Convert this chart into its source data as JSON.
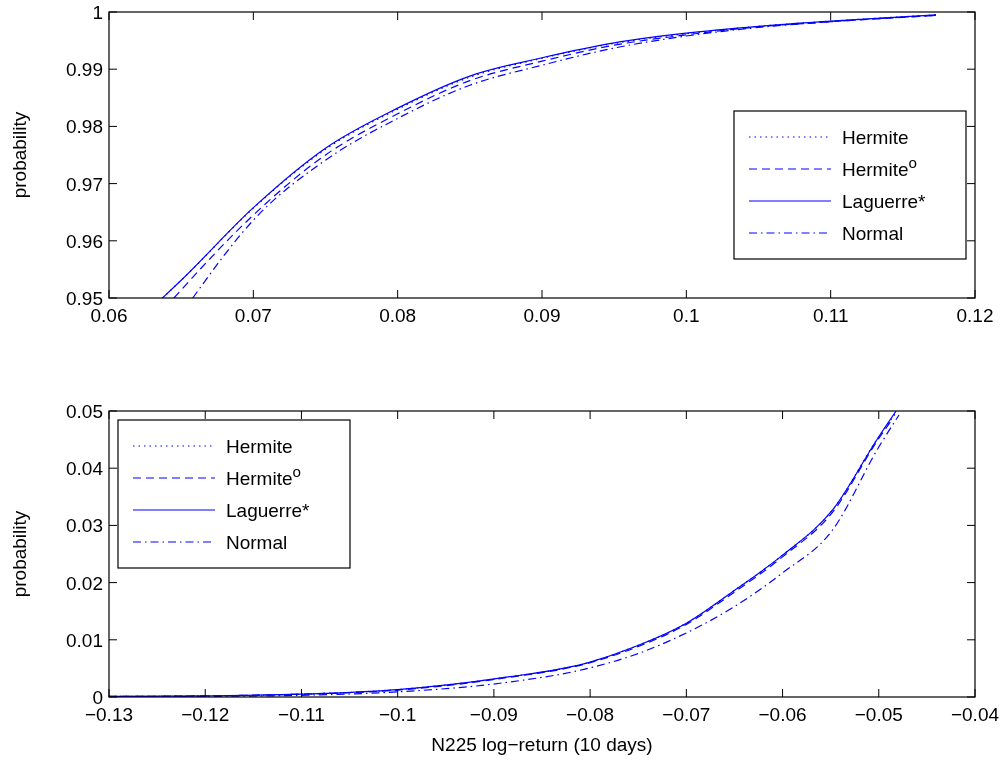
{
  "chart_data": [
    {
      "type": "line",
      "ylabel": "probability",
      "xlim": [
        0.06,
        0.12
      ],
      "ylim": [
        0.95,
        1
      ],
      "xticks": [
        0.06,
        0.07,
        0.08,
        0.09,
        0.1,
        0.11,
        0.12
      ],
      "yticks": [
        0.95,
        0.96,
        0.97,
        0.98,
        0.99,
        1
      ],
      "grid": false,
      "legend": "right",
      "series": [
        {
          "name": "Hermite",
          "color": "#0000ff",
          "line_style": "dotted",
          "x": [
            0.0637,
            0.065,
            0.07,
            0.075,
            0.08,
            0.085,
            0.09,
            0.095,
            0.1,
            0.105,
            0.11,
            0.1173
          ],
          "values": [
            0.95,
            0.9531,
            0.9657,
            0.976,
            0.983,
            0.9886,
            0.9919,
            0.9945,
            0.9962,
            0.9975,
            0.9984,
            0.9995
          ]
        },
        {
          "name": "Hermite$^{o}$",
          "color": "#0000ff",
          "line_style": "dashed",
          "x": [
            0.0645,
            0.065,
            0.07,
            0.075,
            0.08,
            0.085,
            0.09,
            0.095,
            0.1,
            0.105,
            0.11,
            0.1173
          ],
          "values": [
            0.95,
            0.9514,
            0.9645,
            0.975,
            0.9822,
            0.988,
            0.9914,
            0.9942,
            0.996,
            0.9974,
            0.9983,
            0.9994
          ]
        },
        {
          "name": "Laguerre*",
          "color": "#0000ff",
          "line_style": "solid",
          "x": [
            0.0637,
            0.065,
            0.07,
            0.075,
            0.08,
            0.085,
            0.09,
            0.095,
            0.1,
            0.105,
            0.11,
            0.1173
          ],
          "values": [
            0.95,
            0.9531,
            0.9658,
            0.9762,
            0.9832,
            0.9888,
            0.992,
            0.9946,
            0.9963,
            0.9975,
            0.9984,
            0.9995
          ]
        },
        {
          "name": "Normal",
          "color": "#0000ff",
          "line_style": "dashdot",
          "x": [
            0.0658,
            0.07,
            0.075,
            0.08,
            0.085,
            0.09,
            0.095,
            0.1,
            0.105,
            0.11,
            0.1173
          ],
          "values": [
            0.95,
            0.9636,
            0.9741,
            0.9814,
            0.9872,
            0.9907,
            0.9937,
            0.9958,
            0.9973,
            0.9983,
            0.9994
          ]
        }
      ]
    },
    {
      "type": "line",
      "xlabel": "N225 log−return (10 days)",
      "ylabel": "probability",
      "xlim": [
        -0.13,
        -0.04
      ],
      "ylim": [
        0,
        0.05
      ],
      "xticks": [
        {
          "value": -0.13,
          "label": "−0.13"
        },
        {
          "value": -0.12,
          "label": "−0.12"
        },
        {
          "value": -0.11,
          "label": "−0.11"
        },
        {
          "value": -0.1,
          "label": "−0.1"
        },
        {
          "value": -0.09,
          "label": "−0.09"
        },
        {
          "value": -0.08,
          "label": "−0.08"
        },
        {
          "value": -0.07,
          "label": "−0.07"
        },
        {
          "value": -0.06,
          "label": "−0.06"
        },
        {
          "value": -0.05,
          "label": "−0.05"
        },
        {
          "value": -0.04,
          "label": "−0.04"
        }
      ],
      "yticks": [
        0,
        0.01,
        0.02,
        0.03,
        0.04,
        0.05
      ],
      "grid": false,
      "legend": "top left",
      "series": [
        {
          "name": "Hermite",
          "color": "#0000ff",
          "line_style": "dotted",
          "x": [
            -0.13,
            -0.12,
            -0.11,
            -0.1,
            -0.0894,
            -0.08,
            -0.0755,
            -0.07,
            -0.0652,
            -0.06,
            -0.0548,
            -0.05,
            -0.0482
          ],
          "values": [
            0.0001,
            0.0002,
            0.0005,
            0.0013,
            0.0033,
            0.0061,
            0.0087,
            0.0129,
            0.0184,
            0.0248,
            0.0327,
            0.0455,
            0.0497
          ]
        },
        {
          "name": "Hermite$^{o}$",
          "color": "#0000ff",
          "line_style": "dashed",
          "x": [
            -0.13,
            -0.12,
            -0.11,
            -0.1,
            -0.0894,
            -0.08,
            -0.0755,
            -0.07,
            -0.0652,
            -0.06,
            -0.0548,
            -0.05,
            -0.0485
          ],
          "values": [
            0.0001,
            0.0002,
            0.0005,
            0.0012,
            0.0032,
            0.006,
            0.0085,
            0.0127,
            0.0181,
            0.0245,
            0.0323,
            0.0452,
            0.0488
          ]
        },
        {
          "name": "Laguerre*",
          "color": "#0000ff",
          "line_style": "solid",
          "x": [
            -0.13,
            -0.12,
            -0.11,
            -0.1,
            -0.0894,
            -0.08,
            -0.0755,
            -0.07,
            -0.0652,
            -0.06,
            -0.0548,
            -0.05,
            -0.0482
          ],
          "values": [
            0.0001,
            0.0002,
            0.0005,
            0.0013,
            0.0033,
            0.0061,
            0.0087,
            0.0129,
            0.0184,
            0.0248,
            0.0327,
            0.0455,
            0.05
          ]
        },
        {
          "name": "Normal",
          "color": "#0000ff",
          "line_style": "dashdot",
          "x": [
            -0.13,
            -0.12,
            -0.11,
            -0.1,
            -0.0894,
            -0.08,
            -0.0755,
            -0.07,
            -0.0652,
            -0.06,
            -0.0548,
            -0.05,
            -0.0479
          ],
          "values": [
            0,
            0.0001,
            0.0003,
            0.0009,
            0.0024,
            0.0051,
            0.0073,
            0.0112,
            0.0156,
            0.0217,
            0.0292,
            0.0437,
            0.0493
          ]
        }
      ]
    }
  ]
}
